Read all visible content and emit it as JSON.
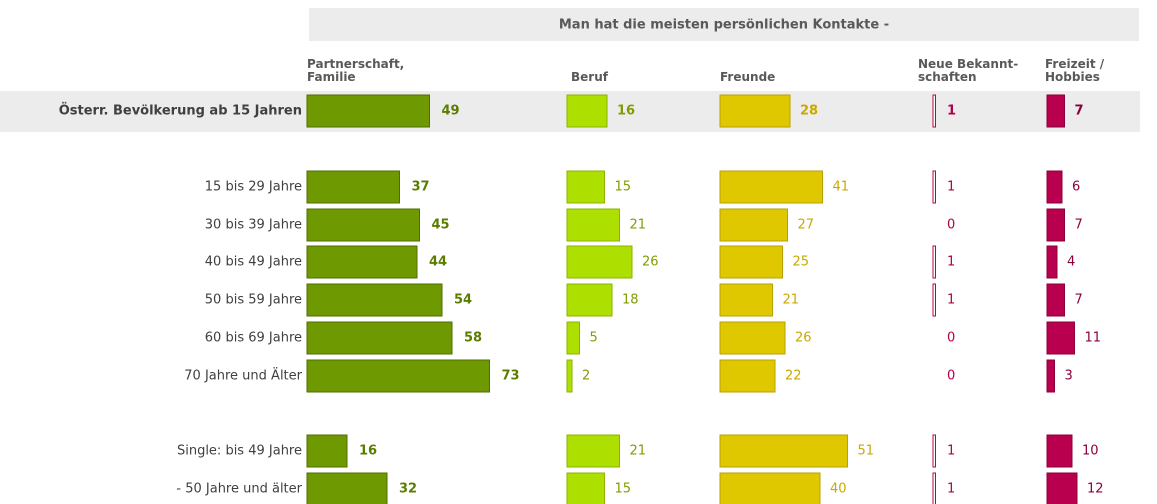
{
  "chart_data": {
    "type": "bar",
    "title": "Man hat die meisten persönlichen Kontakte -",
    "categories": [
      "Österr. Bevölkerung ab 15 Jahren",
      "15 bis 29 Jahre",
      "30 bis 39 Jahre",
      "40 bis 49 Jahre",
      "50 bis 59 Jahre",
      "60 bis 69 Jahre",
      "70 Jahre und Älter",
      "Single: bis 49 Jahre",
      "- 50 Jahre und älter"
    ],
    "series": [
      {
        "name": "Partnerschaft,\nFamilie",
        "color": "#6f9900",
        "values": [
          49,
          37,
          45,
          44,
          54,
          58,
          73,
          16,
          32
        ]
      },
      {
        "name": "Beruf",
        "color": "#ade000",
        "values": [
          16,
          15,
          21,
          26,
          18,
          5,
          2,
          21,
          15
        ]
      },
      {
        "name": "Freunde",
        "color": "#e0c800",
        "values": [
          28,
          41,
          27,
          25,
          21,
          26,
          22,
          51,
          40
        ]
      },
      {
        "name": "Neue Bekannt-\nschaften",
        "color": "#c0004e",
        "values": [
          1,
          1,
          0,
          1,
          1,
          0,
          0,
          1,
          1
        ]
      },
      {
        "name": "Freizeit /\nHobbies",
        "color": "#b8004e",
        "values": [
          7,
          6,
          7,
          4,
          7,
          11,
          3,
          10,
          12
        ]
      }
    ]
  }
}
